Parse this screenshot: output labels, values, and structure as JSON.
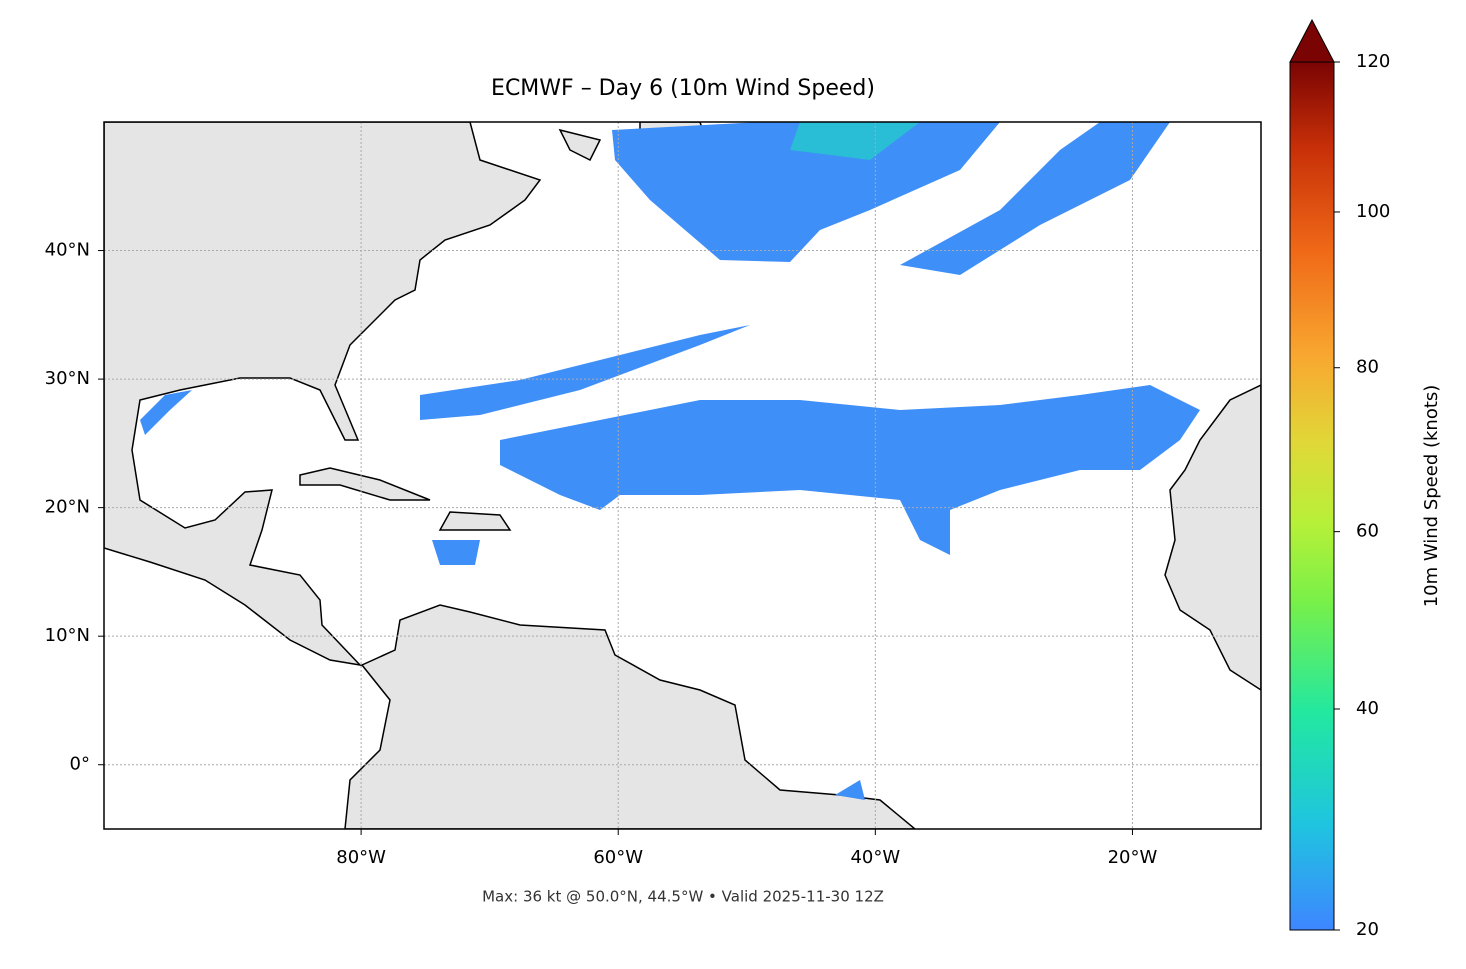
{
  "title": "ECMWF – Day 6 (10m Wind Speed)",
  "footer": "Max: 36 kt @ 50.0°N, 44.5°W • Valid 2025-11-30 12Z",
  "map": {
    "lonlim": [
      -100,
      -10
    ],
    "latlim": [
      -5,
      50
    ],
    "lon_ticks": [
      {
        "value": -80,
        "label": "80°W"
      },
      {
        "value": -60,
        "label": "60°W"
      },
      {
        "value": -40,
        "label": "40°W"
      },
      {
        "value": -20,
        "label": "20°W"
      }
    ],
    "lat_ticks": [
      {
        "value": 0,
        "label": "0°"
      },
      {
        "value": 10,
        "label": "10°N"
      },
      {
        "value": 20,
        "label": "20°N"
      },
      {
        "value": 30,
        "label": "30°N"
      },
      {
        "value": 40,
        "label": "40°N"
      }
    ],
    "grid": true
  },
  "colorbar": {
    "label": "10m Wind Speed (knots)",
    "lim": [
      20,
      120
    ],
    "ticks": [
      20,
      40,
      60,
      80,
      100,
      120
    ]
  }
}
